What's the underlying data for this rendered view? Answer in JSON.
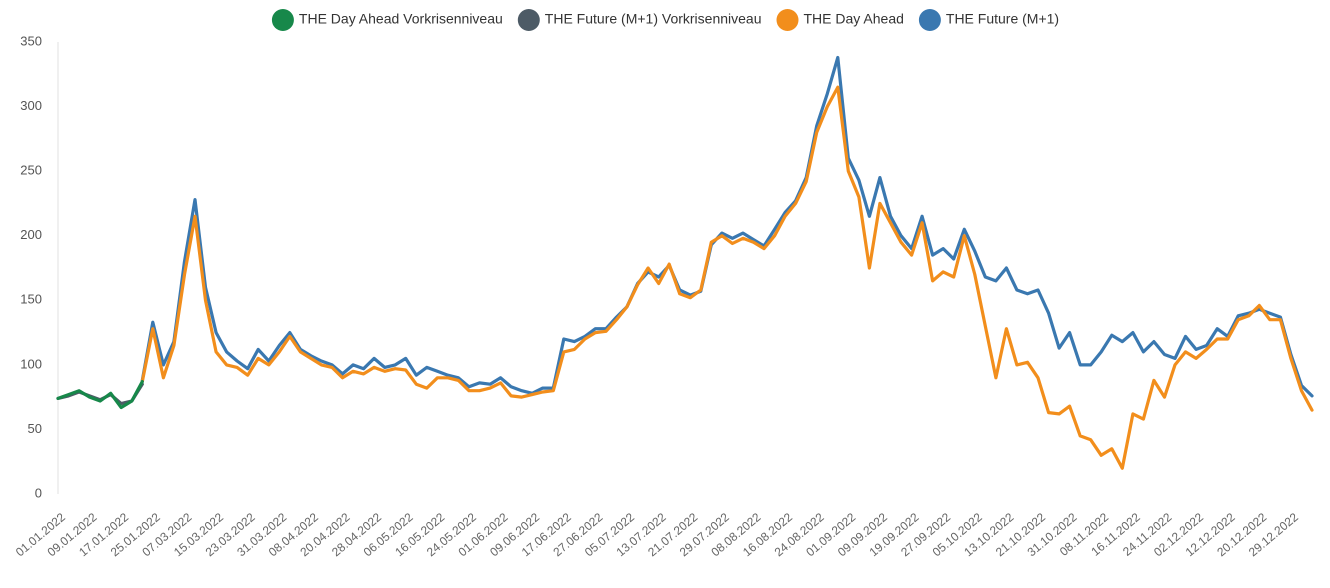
{
  "chart_data": {
    "type": "line",
    "ylim": [
      0,
      350
    ],
    "yticks": [
      0,
      50,
      100,
      150,
      200,
      250,
      300,
      350
    ],
    "grid": false,
    "legend": "top",
    "categories": [
      "01.01.2022",
      null,
      null,
      "09.01.2022",
      null,
      null,
      "17.01.2022",
      null,
      null,
      "25.01.2022",
      null,
      null,
      "07.03.2022",
      null,
      null,
      "15.03.2022",
      null,
      null,
      "23.03.2022",
      null,
      null,
      "31.03.2022",
      null,
      null,
      "08.04.2022",
      null,
      null,
      "20.04.2022",
      null,
      null,
      "28.04.2022",
      null,
      null,
      "06.05.2022",
      null,
      null,
      "16.05.2022",
      null,
      null,
      "24.05.2022",
      null,
      null,
      "01.06.2022",
      null,
      null,
      "09.06.2022",
      null,
      null,
      "17.06.2022",
      null,
      null,
      "27.06.2022",
      null,
      null,
      "05.07.2022",
      null,
      null,
      "13.07.2022",
      null,
      null,
      "21.07.2022",
      null,
      null,
      "29.07.2022",
      null,
      null,
      "08.08.2022",
      null,
      null,
      "16.08.2022",
      null,
      null,
      "24.08.2022",
      null,
      null,
      "01.09.2022",
      null,
      null,
      "09.09.2022",
      null,
      null,
      "19.09.2022",
      null,
      null,
      "27.09.2022",
      null,
      null,
      "05.10.2022",
      null,
      null,
      "13.10.2022",
      null,
      null,
      "21.10.2022",
      null,
      null,
      "31.10.2022",
      null,
      null,
      "08.11.2022",
      null,
      null,
      "16.11.2022",
      null,
      null,
      "24.11.2022",
      null,
      null,
      "02.12.2022",
      null,
      null,
      "12.12.2022",
      null,
      null,
      "20.12.2022",
      null,
      null,
      "29.12.2022",
      null,
      null
    ],
    "series": [
      {
        "name": "THE Day Ahead Vorkrisenniveau",
        "color": "#17884a",
        "values": [
          74,
          77,
          80,
          75,
          72,
          78,
          67,
          72,
          87,
          null,
          null,
          null,
          null,
          null,
          null,
          null,
          null,
          null,
          null,
          null,
          null,
          null,
          null,
          null,
          null,
          null,
          null,
          null,
          null,
          null,
          null,
          null,
          null,
          null,
          null,
          null,
          null,
          null,
          null,
          null,
          null,
          null,
          null,
          null,
          null,
          null,
          null,
          null,
          null,
          null,
          null,
          null,
          null,
          null,
          null,
          null,
          null,
          null,
          null,
          null,
          null,
          null,
          null,
          null,
          null,
          null,
          null,
          null,
          null,
          null,
          null,
          null,
          null,
          null,
          null,
          null,
          null,
          null,
          null,
          null,
          null,
          null,
          null,
          null,
          null,
          null,
          null,
          null,
          null,
          null,
          null,
          null,
          null,
          null,
          null,
          null,
          null,
          null,
          null,
          null,
          null,
          null,
          null,
          null,
          null,
          null,
          null,
          null,
          null,
          null,
          null,
          null,
          null,
          null,
          null,
          null,
          null,
          null,
          null,
          null
        ]
      },
      {
        "name": "THE Future (M+1) Vorkrisenniveau",
        "color": "#4d5b66",
        "values": [
          74,
          76,
          79,
          76,
          73,
          77,
          70,
          72,
          85,
          null,
          null,
          null,
          null,
          null,
          null,
          null,
          null,
          null,
          null,
          null,
          null,
          null,
          null,
          null,
          null,
          null,
          null,
          null,
          null,
          null,
          null,
          null,
          null,
          null,
          null,
          null,
          null,
          null,
          null,
          null,
          null,
          null,
          null,
          null,
          null,
          null,
          null,
          null,
          null,
          null,
          null,
          null,
          null,
          null,
          null,
          null,
          null,
          null,
          null,
          null,
          null,
          null,
          null,
          null,
          null,
          null,
          null,
          null,
          null,
          null,
          null,
          null,
          null,
          null,
          null,
          null,
          null,
          null,
          null,
          null,
          null,
          null,
          null,
          null,
          null,
          null,
          null,
          null,
          null,
          null,
          null,
          null,
          null,
          null,
          null,
          null,
          null,
          null,
          null,
          null,
          null,
          null,
          null,
          null,
          null,
          null,
          null,
          null,
          null,
          null,
          null,
          null,
          null,
          null,
          null,
          null,
          null,
          null,
          null,
          null
        ]
      },
      {
        "name": "THE Day Ahead",
        "color": "#f28e1c",
        "values": [
          null,
          null,
          null,
          null,
          null,
          null,
          null,
          null,
          87,
          128,
          90,
          115,
          170,
          215,
          150,
          110,
          100,
          98,
          92,
          105,
          100,
          110,
          122,
          110,
          105,
          100,
          98,
          90,
          95,
          93,
          98,
          95,
          97,
          96,
          85,
          82,
          90,
          90,
          88,
          80,
          80,
          82,
          86,
          76,
          75,
          77,
          79,
          80,
          110,
          112,
          120,
          125,
          126,
          135,
          145,
          162,
          175,
          163,
          178,
          155,
          152,
          158,
          195,
          200,
          194,
          198,
          195,
          190,
          200,
          215,
          225,
          242,
          280,
          300,
          315,
          250,
          230,
          175,
          225,
          210,
          195,
          185,
          210,
          165,
          172,
          168,
          200,
          170,
          130,
          90,
          128,
          100,
          102,
          90,
          63,
          62,
          68,
          45,
          42,
          30,
          35,
          20,
          62,
          58,
          88,
          75,
          100,
          110,
          105,
          112,
          120,
          120,
          135,
          138,
          146,
          135,
          135,
          105,
          80,
          65
        ]
      },
      {
        "name": "THE Future (M+1)",
        "color": "#3a78b0",
        "values": [
          null,
          null,
          null,
          null,
          null,
          null,
          null,
          null,
          88,
          133,
          100,
          118,
          180,
          228,
          160,
          125,
          110,
          103,
          97,
          112,
          103,
          115,
          125,
          112,
          107,
          103,
          100,
          93,
          100,
          97,
          105,
          98,
          100,
          105,
          92,
          98,
          95,
          92,
          90,
          83,
          86,
          85,
          90,
          83,
          80,
          78,
          82,
          82,
          120,
          118,
          122,
          128,
          128,
          137,
          145,
          163,
          172,
          168,
          177,
          158,
          154,
          157,
          193,
          202,
          198,
          202,
          197,
          192,
          205,
          218,
          227,
          245,
          285,
          310,
          338,
          260,
          243,
          215,
          245,
          215,
          200,
          190,
          215,
          185,
          190,
          182,
          205,
          188,
          168,
          165,
          175,
          158,
          155,
          158,
          140,
          113,
          125,
          100,
          100,
          110,
          123,
          118,
          125,
          110,
          118,
          108,
          105,
          122,
          112,
          115,
          128,
          122,
          138,
          140,
          143,
          140,
          137,
          108,
          84,
          76
        ]
      }
    ]
  }
}
